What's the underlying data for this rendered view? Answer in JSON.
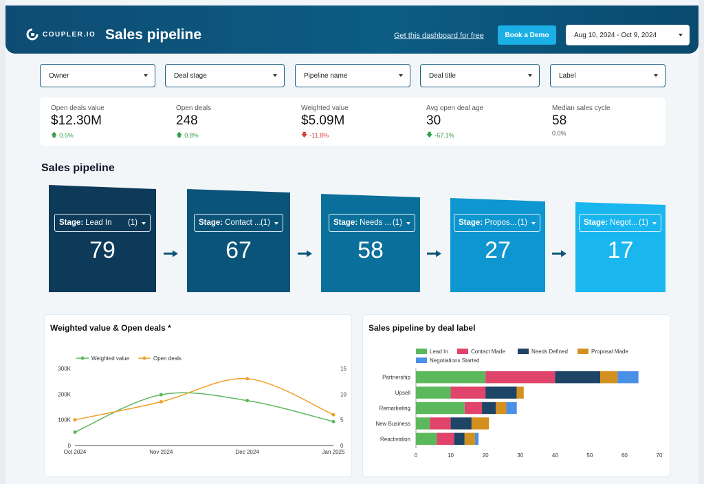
{
  "brand": {
    "name": "COUPLER.IO"
  },
  "header": {
    "title": "Sales pipeline",
    "get_link": "Get this dashboard for free",
    "demo_button": "Book a Demo",
    "date_range": "Aug 10, 2024 - Oct 9, 2024"
  },
  "filters": [
    "Owner",
    "Deal stage",
    "Pipeline name",
    "Deal title",
    "Label"
  ],
  "kpis": [
    {
      "label": "Open deals value",
      "value": "$12.30M",
      "delta": "0.5%",
      "trend": "up"
    },
    {
      "label": "Open deals",
      "value": "248",
      "delta": "0.8%",
      "trend": "up"
    },
    {
      "label": "Weighted value",
      "value": "$5.09M",
      "delta": "-11.8%",
      "trend": "down"
    },
    {
      "label": "Avg open deal age",
      "value": "30",
      "delta": "-67.1%",
      "trend": "down-green"
    },
    {
      "label": "Median sales cycle",
      "value": "58",
      "delta": "0.0%",
      "trend": "flat"
    }
  ],
  "pipeline": {
    "title": "Sales pipeline",
    "stage_prefix": "Stage:",
    "stages": [
      {
        "name": "Lead In",
        "count": "(1)",
        "value": "79",
        "color": "#0d3a58"
      },
      {
        "name": "Contact ...",
        "count": "(1)",
        "value": "67",
        "color": "#0b5479"
      },
      {
        "name": "Needs ...",
        "count": "(1)",
        "value": "58",
        "color": "#0b6f9b"
      },
      {
        "name": "Propos...",
        "count": "(1)",
        "value": "27",
        "color": "#0d96cf"
      },
      {
        "name": "Negot...",
        "count": "(1)",
        "value": "17",
        "color": "#19b6ef"
      }
    ]
  },
  "chart_data": [
    {
      "type": "line",
      "title": "Weighted value & Open deals *",
      "x": [
        "Oct 2024",
        "Nov 2024",
        "Dec 2024",
        "Jan 2025"
      ],
      "series": [
        {
          "name": "Weighted value",
          "axis": "left",
          "color": "#5cb85c",
          "values": [
            52000,
            198000,
            175000,
            93000
          ]
        },
        {
          "name": "Open deals",
          "axis": "right",
          "color": "#f0a02a",
          "values": [
            5,
            8.5,
            13,
            6
          ]
        }
      ],
      "y_left": {
        "ticks": [
          "0",
          "100K",
          "200K",
          "300K"
        ],
        "range": [
          0,
          300000
        ]
      },
      "y_right": {
        "ticks": [
          "0",
          "5",
          "10",
          "15"
        ],
        "range": [
          0,
          15
        ]
      }
    },
    {
      "type": "bar",
      "orientation": "horizontal",
      "stacked": true,
      "title": "Sales pipeline by deal label",
      "categories": [
        "Partnership",
        "Upsell",
        "Remarketing",
        "New Business",
        "Reactivation"
      ],
      "series": [
        {
          "name": "Lead In",
          "color": "#5cb85c",
          "values": [
            20,
            10,
            14,
            4,
            6
          ]
        },
        {
          "name": "Contact Made",
          "color": "#e0446a",
          "values": [
            20,
            10,
            5,
            6,
            5
          ]
        },
        {
          "name": "Needs Defined",
          "color": "#1e4466",
          "values": [
            13,
            9,
            4,
            6,
            3
          ]
        },
        {
          "name": "Proposal Made",
          "color": "#d4901e",
          "values": [
            5,
            2,
            3,
            5,
            3
          ]
        },
        {
          "name": "Negotiations Started",
          "color": "#4a8fe8",
          "values": [
            6,
            0,
            3,
            0,
            1
          ]
        }
      ],
      "x_ticks": [
        "0",
        "10",
        "20",
        "30",
        "40",
        "50",
        "60",
        "70"
      ],
      "xlim": [
        0,
        70
      ]
    }
  ]
}
